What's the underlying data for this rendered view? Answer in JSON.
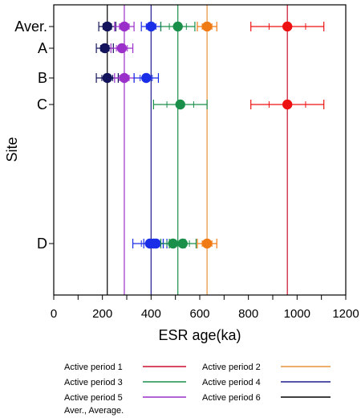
{
  "chart_data": {
    "type": "scatter",
    "xlabel": "ESR age(ka)",
    "ylabel": "Site",
    "xlim": [
      0,
      1200
    ],
    "x_ticks": [
      0,
      200,
      400,
      600,
      800,
      1000,
      1200
    ],
    "sites": [
      "Aver.",
      "A",
      "B",
      "C",
      "D"
    ],
    "active_periods": [
      {
        "name": "Active period 1",
        "age": 960,
        "color": "#c8102e"
      },
      {
        "name": "Active period 2",
        "age": 630,
        "color": "#e8923a"
      },
      {
        "name": "Active period 3",
        "age": 510,
        "color": "#1a8f4a"
      },
      {
        "name": "Active period 4",
        "age": 400,
        "color": "#1c1c8c"
      },
      {
        "name": "Active period 5",
        "age": 290,
        "color": "#9b2fc9"
      },
      {
        "name": "Active period 6",
        "age": 220,
        "color": "#000000"
      }
    ],
    "points": [
      {
        "site": "Aver.",
        "x": 220,
        "err": 35,
        "color": "#14145c"
      },
      {
        "site": "Aver.",
        "x": 290,
        "err": 40,
        "color": "#9b2fc9"
      },
      {
        "site": "Aver.",
        "x": 400,
        "err": 40,
        "color": "#1a2ee8"
      },
      {
        "site": "Aver.",
        "x": 510,
        "err": 70,
        "color": "#1a8f4a"
      },
      {
        "site": "Aver.",
        "x": 630,
        "err": 40,
        "color": "#f07a14"
      },
      {
        "site": "Aver.",
        "x": 960,
        "err": 150,
        "color": "#ee1111"
      },
      {
        "site": "A",
        "x": 210,
        "err": 35,
        "color": "#14145c"
      },
      {
        "site": "A",
        "x": 280,
        "err": 45,
        "color": "#9b2fc9"
      },
      {
        "site": "B",
        "x": 220,
        "err": 45,
        "color": "#14145c"
      },
      {
        "site": "B",
        "x": 290,
        "err": 40,
        "color": "#9b2fc9"
      },
      {
        "site": "B",
        "x": 380,
        "err": 50,
        "color": "#1a2ee8"
      },
      {
        "site": "C",
        "x": 520,
        "err": 110,
        "color": "#1a8f4a"
      },
      {
        "site": "C",
        "x": 960,
        "err": 150,
        "color": "#ee1111"
      },
      {
        "site": "D",
        "x": 395,
        "err": 70,
        "color": "#1a2ee8"
      },
      {
        "site": "D",
        "x": 410,
        "err": 40,
        "color": "#1a2ee8"
      },
      {
        "site": "D",
        "x": 420,
        "err": 30,
        "color": "#1a2ee8"
      },
      {
        "site": "D",
        "x": 490,
        "err": 50,
        "color": "#1a8f4a"
      },
      {
        "site": "D",
        "x": 530,
        "err": 55,
        "color": "#1a8f4a"
      },
      {
        "site": "D",
        "x": 630,
        "err": 40,
        "color": "#f07a14"
      }
    ],
    "legend": [
      {
        "label": "Active period 1",
        "color": "#c8102e"
      },
      {
        "label": "Active period 2",
        "color": "#e8923a"
      },
      {
        "label": "Active period 3",
        "color": "#1a8f4a"
      },
      {
        "label": "Active period 4",
        "color": "#1c1c8c"
      },
      {
        "label": "Active period 5",
        "color": "#9b2fc9"
      },
      {
        "label": "Active period 6",
        "color": "#000000"
      }
    ],
    "legend_note": "Aver., Average."
  }
}
